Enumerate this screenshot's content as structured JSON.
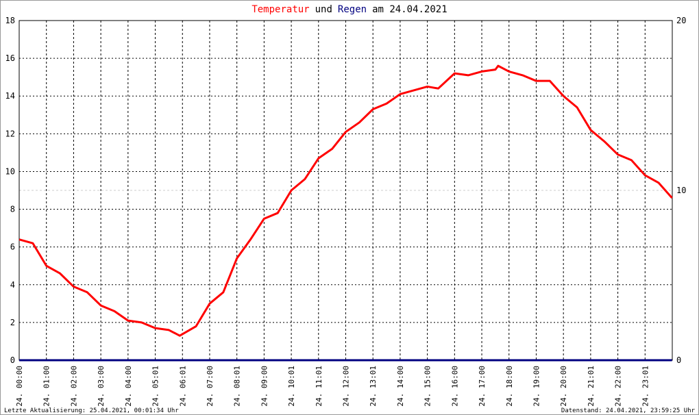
{
  "chart_data": {
    "type": "line",
    "title": [
      {
        "text": "Temperatur",
        "color": "#ff0000"
      },
      {
        "text": "und",
        "color": "#000000"
      },
      {
        "text": "Regen",
        "color": "#000080"
      },
      {
        "text": "am 24.04.2021",
        "color": "#000000"
      }
    ],
    "x": [
      0,
      0.5,
      1,
      1.5,
      2,
      2.5,
      3,
      3.5,
      4,
      4.5,
      5,
      5.5,
      5.9,
      6.5,
      7,
      7.5,
      8,
      8.5,
      9,
      9.5,
      10,
      10.5,
      11,
      11.5,
      12,
      12.5,
      13,
      13.5,
      14,
      14.5,
      15,
      15.4,
      16,
      16.5,
      17,
      17.5,
      17.6,
      18,
      18.5,
      19,
      19.5,
      20,
      20.5,
      21,
      21.5,
      22,
      22.5,
      23,
      23.5,
      23.99
    ],
    "series": [
      {
        "name": "Temperatur",
        "color": "#ff0000",
        "axis": "y",
        "values": [
          6.4,
          6.2,
          5.0,
          4.6,
          3.9,
          3.6,
          2.9,
          2.6,
          2.1,
          2.0,
          1.7,
          1.6,
          1.3,
          1.8,
          3.0,
          3.6,
          5.4,
          6.4,
          7.5,
          7.8,
          9.0,
          9.6,
          10.7,
          11.2,
          12.1,
          12.6,
          13.3,
          13.6,
          14.1,
          14.3,
          14.5,
          14.4,
          15.2,
          15.1,
          15.3,
          15.4,
          15.6,
          15.3,
          15.1,
          14.8,
          14.8,
          14.0,
          13.4,
          12.2,
          11.6,
          10.9,
          10.6,
          9.8,
          9.4,
          8.6
        ]
      },
      {
        "name": "Regen",
        "color": "#000080",
        "axis": "y2",
        "values": [
          0,
          0,
          0,
          0,
          0,
          0,
          0,
          0,
          0,
          0,
          0,
          0,
          0,
          0,
          0,
          0,
          0,
          0,
          0,
          0,
          0,
          0,
          0,
          0,
          0,
          0,
          0,
          0,
          0,
          0,
          0,
          0,
          0,
          0,
          0,
          0,
          0,
          0,
          0,
          0,
          0,
          0,
          0,
          0,
          0,
          0,
          0,
          0,
          0,
          0
        ]
      }
    ],
    "xlim": [
      0,
      24
    ],
    "xticks": [
      {
        "value": 0,
        "label": "24. 00:00"
      },
      {
        "value": 1,
        "label": "24. 01:00"
      },
      {
        "value": 2,
        "label": "24. 02:00"
      },
      {
        "value": 3,
        "label": "24. 03:00"
      },
      {
        "value": 4,
        "label": "24. 04:00"
      },
      {
        "value": 5,
        "label": "24. 05:01"
      },
      {
        "value": 6,
        "label": "24. 06:01"
      },
      {
        "value": 7,
        "label": "24. 07:00"
      },
      {
        "value": 8,
        "label": "24. 08:01"
      },
      {
        "value": 9,
        "label": "24. 09:00"
      },
      {
        "value": 10,
        "label": "24. 10:01"
      },
      {
        "value": 11,
        "label": "24. 11:01"
      },
      {
        "value": 12,
        "label": "24. 12:00"
      },
      {
        "value": 13,
        "label": "24. 13:01"
      },
      {
        "value": 14,
        "label": "24. 14:00"
      },
      {
        "value": 15,
        "label": "24. 15:00"
      },
      {
        "value": 16,
        "label": "24. 16:00"
      },
      {
        "value": 17,
        "label": "24. 17:00"
      },
      {
        "value": 18,
        "label": "24. 18:00"
      },
      {
        "value": 19,
        "label": "24. 19:00"
      },
      {
        "value": 20,
        "label": "24. 20:00"
      },
      {
        "value": 21,
        "label": "24. 21:01"
      },
      {
        "value": 22,
        "label": "24. 22:00"
      },
      {
        "value": 23,
        "label": "24. 23:01"
      }
    ],
    "ylim": [
      0,
      18
    ],
    "yticks": [
      0,
      2,
      4,
      6,
      8,
      10,
      12,
      14,
      16,
      18
    ],
    "y2lim": [
      0,
      20
    ],
    "y2ticks": [
      0,
      10,
      20
    ],
    "grid": true,
    "footer_left": "Letzte Aktualisierung: 25.04.2021, 00:01:34 Uhr",
    "footer_right": "Datenstand: 24.04.2021, 23:59:25 Uhr"
  }
}
